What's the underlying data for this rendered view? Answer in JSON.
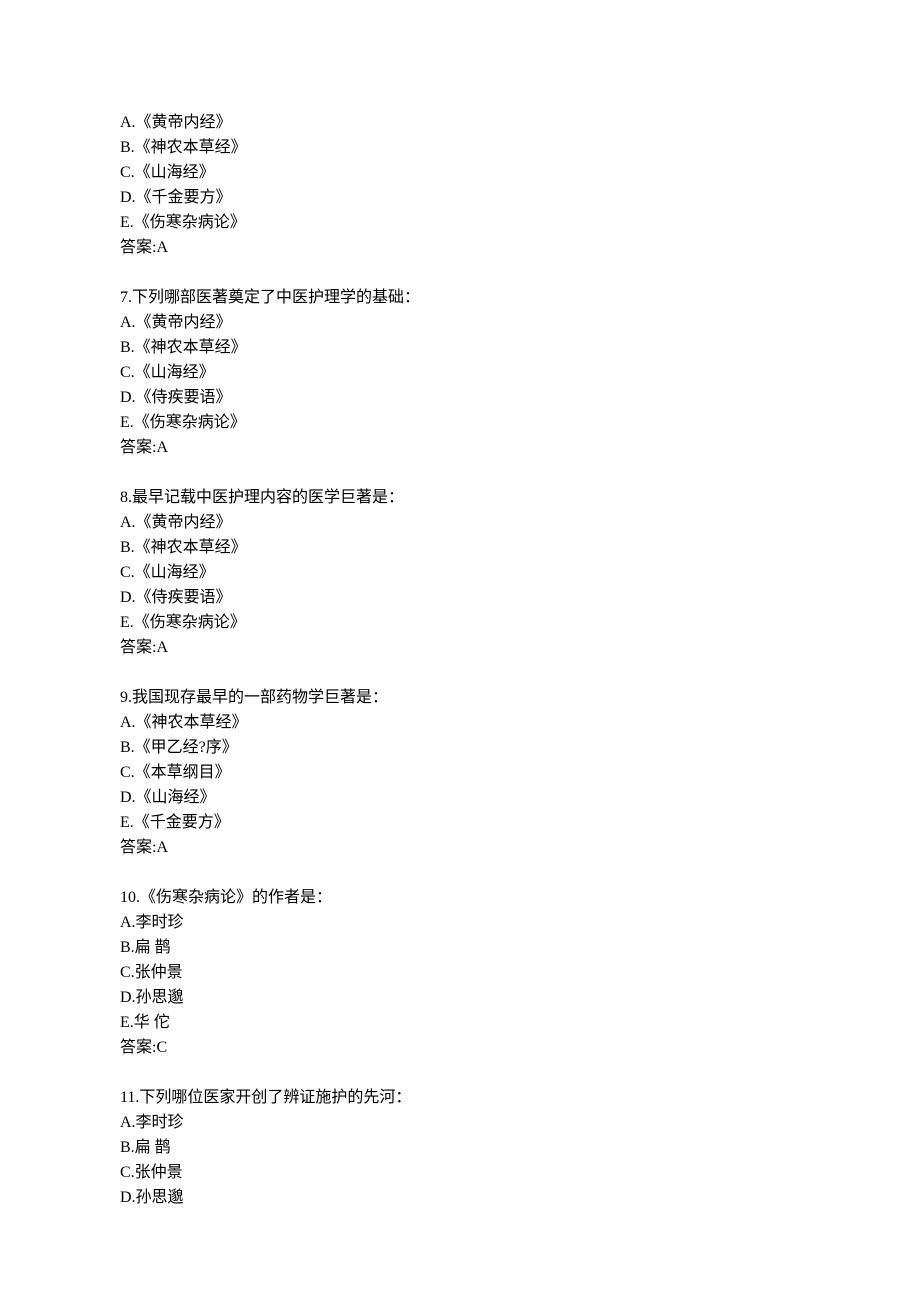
{
  "text_color": "#000000",
  "background_color": "#ffffff",
  "font_size": 16,
  "line_height": 25,
  "blocks": [
    {
      "name": "block-6-options",
      "lines": [
        "A.《黄帝内经》",
        "B.《神农本草经》",
        "C.《山海经》",
        "D.《千金要方》",
        "E.《伤寒杂病论》",
        "答案:A"
      ]
    },
    {
      "name": "question-7",
      "lines": [
        "7.下列哪部医著奠定了中医护理学的基础：",
        "A.《黄帝内经》",
        "B.《神农本草经》",
        "C.《山海经》",
        "D.《侍疾要语》",
        "E.《伤寒杂病论》",
        "答案:A"
      ]
    },
    {
      "name": "question-8",
      "lines": [
        "8.最早记载中医护理内容的医学巨著是：",
        "A.《黄帝内经》",
        "B.《神农本草经》",
        "C.《山海经》",
        "D.《侍疾要语》",
        "E.《伤寒杂病论》",
        "答案:A"
      ]
    },
    {
      "name": "question-9",
      "lines": [
        "9.我国现存最早的一部药物学巨著是：",
        "A.《神农本草经》",
        "B.《甲乙经?序》",
        "C.《本草纲目》",
        "D.《山海经》",
        "E.《千金要方》",
        "答案:A"
      ]
    },
    {
      "name": "question-10",
      "lines": [
        "10.《伤寒杂病论》的作者是：",
        "A.李时珍",
        "B.扁 鹊",
        "C.张仲景",
        "D.孙思邈",
        "E.华 佗",
        "答案:C"
      ]
    },
    {
      "name": "question-11",
      "lines": [
        "11.下列哪位医家开创了辨证施护的先河：",
        "A.李时珍",
        "B.扁 鹊",
        "C.张仲景",
        "D.孙思邈"
      ]
    }
  ]
}
